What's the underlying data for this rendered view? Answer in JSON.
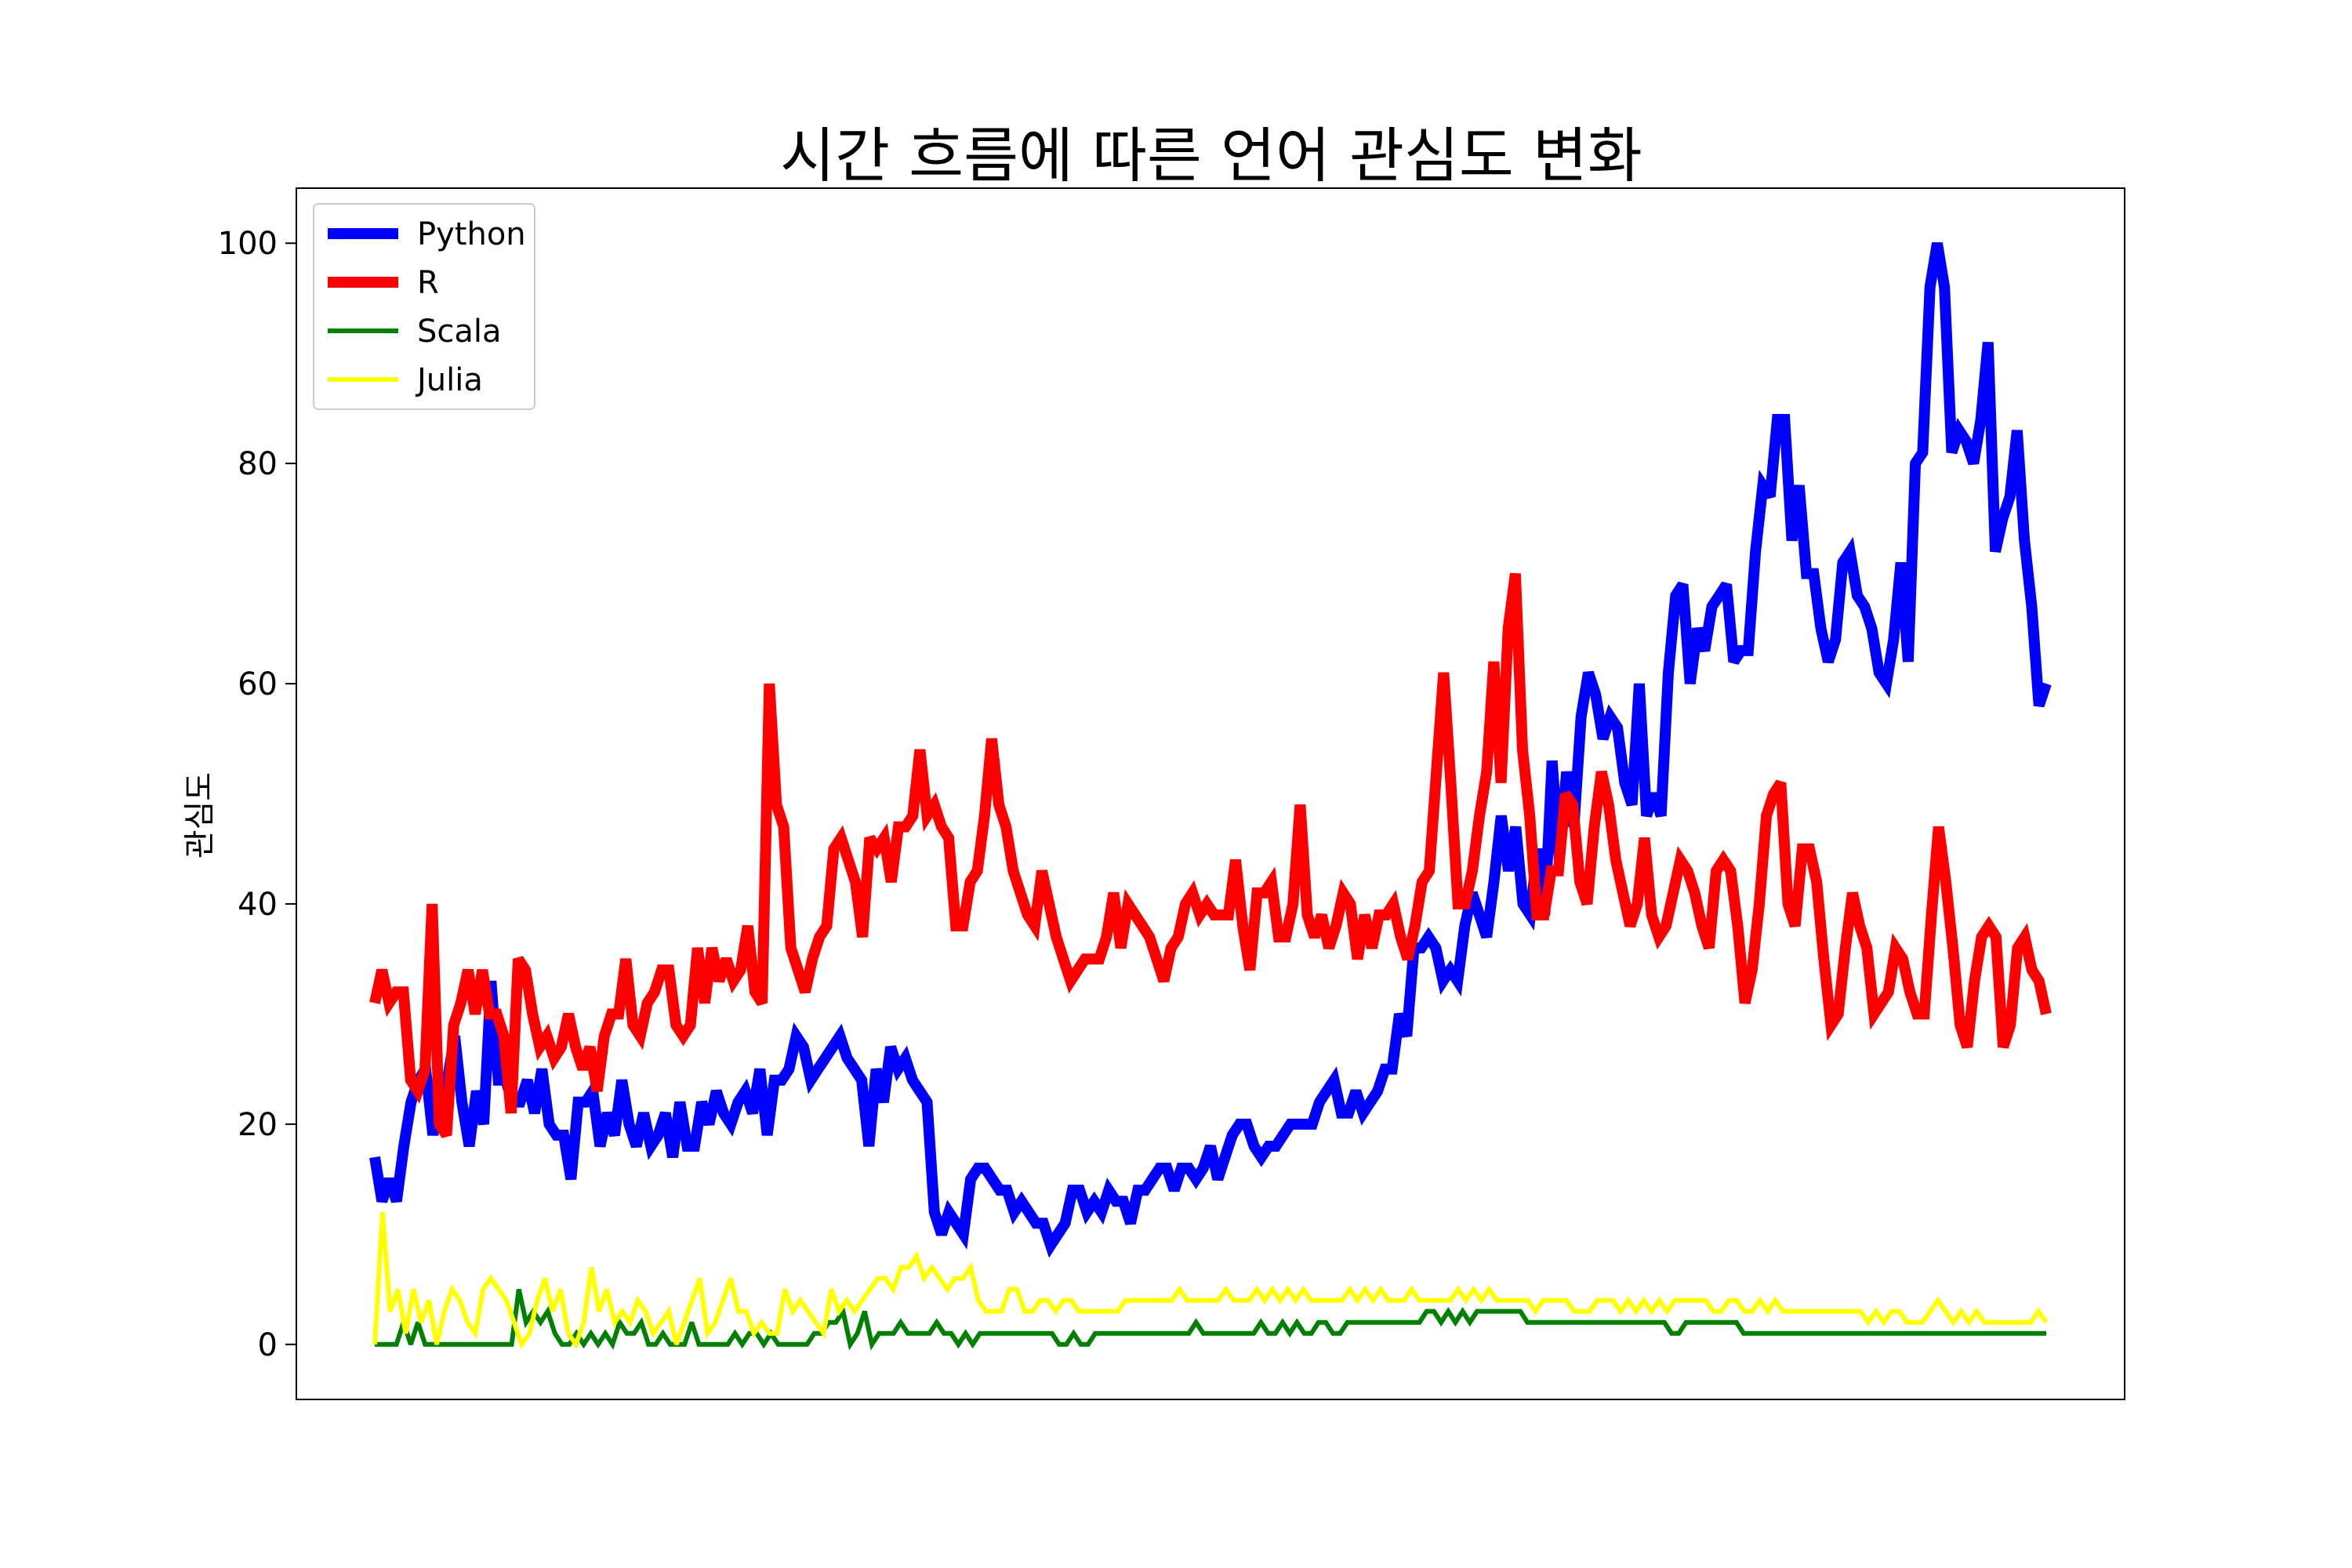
{
  "chart_data": {
    "type": "line",
    "title": "시간 흐름에 따른 언어 관심도 변화",
    "xlabel": "",
    "ylabel": "관심도",
    "ylim": [
      -5,
      105
    ],
    "yticks": [
      0,
      20,
      40,
      60,
      80,
      100
    ],
    "grid": false,
    "legend_position": "top-left",
    "x_tick_labels_shown": false,
    "series": [
      {
        "name": "Python",
        "color": "#0000ff",
        "values": [
          17,
          13,
          15,
          13,
          18,
          22,
          24,
          25,
          19,
          24,
          24,
          28,
          22,
          18,
          23,
          20,
          33,
          24,
          24,
          22,
          22,
          24,
          21,
          25,
          20,
          19,
          19,
          15,
          22,
          22,
          23,
          18,
          21,
          19,
          24,
          20,
          18,
          21,
          18,
          19,
          21,
          17,
          22,
          18,
          18,
          22,
          20,
          23,
          21,
          20,
          22,
          23,
          21,
          25,
          19,
          24,
          24,
          25,
          28,
          27,
          24,
          25,
          26,
          27,
          28,
          26,
          25,
          24,
          18,
          25,
          22,
          27,
          25,
          26,
          24,
          23,
          22,
          12,
          10,
          12,
          11,
          10,
          15,
          16,
          16,
          15,
          14,
          14,
          12,
          13,
          12,
          11,
          11,
          9,
          10,
          11,
          14,
          14,
          12,
          13,
          12,
          14,
          13,
          13,
          11,
          14,
          14,
          15,
          16,
          16,
          14,
          16,
          16,
          15,
          16,
          18,
          15,
          17,
          19,
          20,
          20,
          18,
          17,
          18,
          18,
          19,
          20,
          20,
          20,
          20,
          22,
          23,
          24,
          21,
          21,
          23,
          21,
          22,
          23,
          25,
          25,
          30,
          28,
          36,
          36,
          37,
          36,
          33,
          34,
          33,
          38,
          41,
          39,
          37,
          42,
          48,
          43,
          47,
          40,
          39,
          45,
          39,
          53,
          44,
          52,
          47,
          57,
          61,
          59,
          55,
          57,
          56,
          51,
          49,
          60,
          48,
          50,
          48,
          61,
          68,
          69,
          60,
          65,
          63,
          67,
          68,
          69,
          62,
          63,
          63,
          72,
          78,
          77,
          84,
          84,
          73,
          78,
          70,
          70,
          65,
          62,
          64,
          71,
          72,
          68,
          67,
          65,
          61,
          60,
          64,
          71,
          62,
          80,
          81,
          96,
          100,
          96,
          81,
          83,
          82,
          80,
          84,
          91,
          72,
          75,
          77,
          83,
          73,
          67,
          58,
          60
        ]
      },
      {
        "name": "R",
        "color": "#ff0000",
        "values": [
          31,
          34,
          31,
          32,
          32,
          24,
          23,
          25,
          40,
          20,
          19,
          29,
          31,
          34,
          30,
          34,
          30,
          30,
          28,
          21,
          35,
          34,
          30,
          27,
          28,
          26,
          27,
          30,
          27,
          25,
          27,
          23,
          28,
          30,
          30,
          35,
          29,
          28,
          31,
          32,
          34,
          34,
          29,
          28,
          29,
          36,
          31,
          36,
          33,
          35,
          33,
          34,
          38,
          32,
          31,
          60,
          49,
          47,
          36,
          34,
          32,
          35,
          37,
          38,
          45,
          46,
          44,
          42,
          37,
          46,
          45,
          46,
          42,
          47,
          47,
          48,
          54,
          48,
          49,
          47,
          46,
          38,
          38,
          42,
          43,
          48,
          55,
          49,
          47,
          43,
          41,
          39,
          38,
          43,
          40,
          37,
          35,
          33,
          34,
          35,
          35,
          35,
          37,
          41,
          36,
          40,
          39,
          38,
          37,
          35,
          33,
          36,
          37,
          40,
          41,
          39,
          40,
          39,
          39,
          39,
          44,
          38,
          34,
          41,
          41,
          42,
          37,
          37,
          40,
          49,
          39,
          37,
          39,
          36,
          38,
          41,
          40,
          35,
          39,
          36,
          39,
          39,
          40,
          37,
          35,
          38,
          42,
          43,
          52,
          61,
          51,
          40,
          40,
          43,
          48,
          52,
          62,
          51,
          65,
          70,
          54,
          48,
          39,
          39,
          43,
          43,
          50,
          49,
          42,
          40,
          47,
          52,
          49,
          44,
          41,
          38,
          40,
          46,
          39,
          37,
          38,
          41,
          44,
          43,
          41,
          38,
          36,
          43,
          44,
          43,
          38,
          31,
          34,
          40,
          48,
          50,
          51,
          40,
          38,
          45,
          45,
          42,
          35,
          29,
          30,
          36,
          41,
          38,
          36,
          30,
          31,
          32,
          36,
          35,
          32,
          30,
          30,
          39,
          47,
          42,
          36,
          29,
          27,
          33,
          37,
          38,
          37,
          27,
          29,
          36,
          37,
          34,
          33,
          30
        ]
      },
      {
        "name": "Scala",
        "color": "#008000",
        "values": [
          0,
          0,
          0,
          0,
          2,
          0,
          2,
          0,
          0,
          0,
          0,
          0,
          0,
          0,
          0,
          0,
          0,
          0,
          0,
          0,
          5,
          2,
          3,
          2,
          3,
          1,
          0,
          0,
          1,
          0,
          1,
          0,
          1,
          0,
          2,
          1,
          1,
          2,
          0,
          0,
          1,
          0,
          0,
          0,
          2,
          0,
          0,
          0,
          0,
          0,
          1,
          0,
          1,
          1,
          0,
          1,
          0,
          0,
          0,
          0,
          0,
          1,
          1,
          2,
          2,
          3,
          0,
          1,
          3,
          0,
          1,
          1,
          1,
          2,
          1,
          1,
          1,
          1,
          2,
          1,
          1,
          0,
          1,
          0,
          1,
          1,
          1,
          1,
          1,
          1,
          1,
          1,
          1,
          1,
          1,
          0,
          0,
          1,
          0,
          0,
          1,
          1,
          1,
          1,
          1,
          1,
          1,
          1,
          1,
          1,
          1,
          1,
          1,
          1,
          2,
          1,
          1,
          1,
          1,
          1,
          1,
          1,
          1,
          2,
          1,
          1,
          2,
          1,
          2,
          1,
          1,
          2,
          2,
          1,
          1,
          2,
          2,
          2,
          2,
          2,
          2,
          2,
          2,
          2,
          2,
          2,
          3,
          3,
          2,
          3,
          2,
          3,
          2,
          3,
          3,
          3,
          3,
          3,
          3,
          3,
          2,
          2,
          2,
          2,
          2,
          2,
          2,
          2,
          2,
          2,
          2,
          2,
          2,
          2,
          2,
          2,
          2,
          2,
          2,
          2,
          1,
          1,
          2,
          2,
          2,
          2,
          2,
          2,
          2,
          2,
          1,
          1,
          1,
          1,
          1,
          1,
          1,
          1,
          1,
          1,
          1,
          1,
          1,
          1,
          1,
          1,
          1,
          1,
          1,
          1,
          1,
          1,
          1,
          1,
          1,
          1,
          1,
          1,
          1,
          1,
          1,
          1,
          1,
          1,
          1,
          1,
          1,
          1,
          1,
          1,
          1,
          1,
          1
        ]
      },
      {
        "name": "Julia",
        "color": "#ffff00",
        "values": [
          0,
          12,
          3,
          5,
          1,
          5,
          2,
          4,
          0,
          3,
          5,
          4,
          2,
          1,
          5,
          6,
          5,
          4,
          2,
          0,
          1,
          4,
          6,
          3,
          5,
          1,
          0,
          2,
          7,
          3,
          5,
          2,
          3,
          2,
          4,
          3,
          1,
          2,
          3,
          0,
          2,
          4,
          6,
          1,
          2,
          4,
          6,
          3,
          3,
          1,
          2,
          1,
          1,
          5,
          3,
          4,
          3,
          2,
          1,
          5,
          3,
          4,
          3,
          4,
          5,
          6,
          6,
          5,
          7,
          7,
          8,
          6,
          7,
          6,
          5,
          6,
          6,
          7,
          4,
          3,
          3,
          3,
          5,
          5,
          3,
          3,
          4,
          4,
          3,
          4,
          4,
          3,
          3,
          3,
          3,
          3,
          3,
          4,
          4,
          4,
          4,
          4,
          4,
          4,
          5,
          4,
          4,
          4,
          4,
          4,
          5,
          4,
          4,
          4,
          5,
          4,
          5,
          4,
          5,
          4,
          5,
          4,
          4,
          4,
          4,
          4,
          5,
          4,
          5,
          4,
          5,
          4,
          4,
          4,
          5,
          4,
          4,
          4,
          4,
          4,
          5,
          4,
          5,
          4,
          5,
          4,
          4,
          4,
          4,
          4,
          3,
          4,
          4,
          4,
          4,
          3,
          3,
          3,
          4,
          4,
          4,
          3,
          4,
          3,
          4,
          3,
          4,
          3,
          4,
          4,
          4,
          4,
          4,
          3,
          3,
          4,
          4,
          3,
          3,
          4,
          3,
          4,
          3,
          3,
          3,
          3,
          3,
          3,
          3,
          3,
          3,
          3,
          3,
          2,
          3,
          2,
          3,
          3,
          2,
          2,
          2,
          3,
          4,
          3,
          2,
          3,
          2,
          3,
          2,
          2,
          2,
          2,
          2,
          2,
          2,
          3,
          2
        ]
      }
    ]
  }
}
